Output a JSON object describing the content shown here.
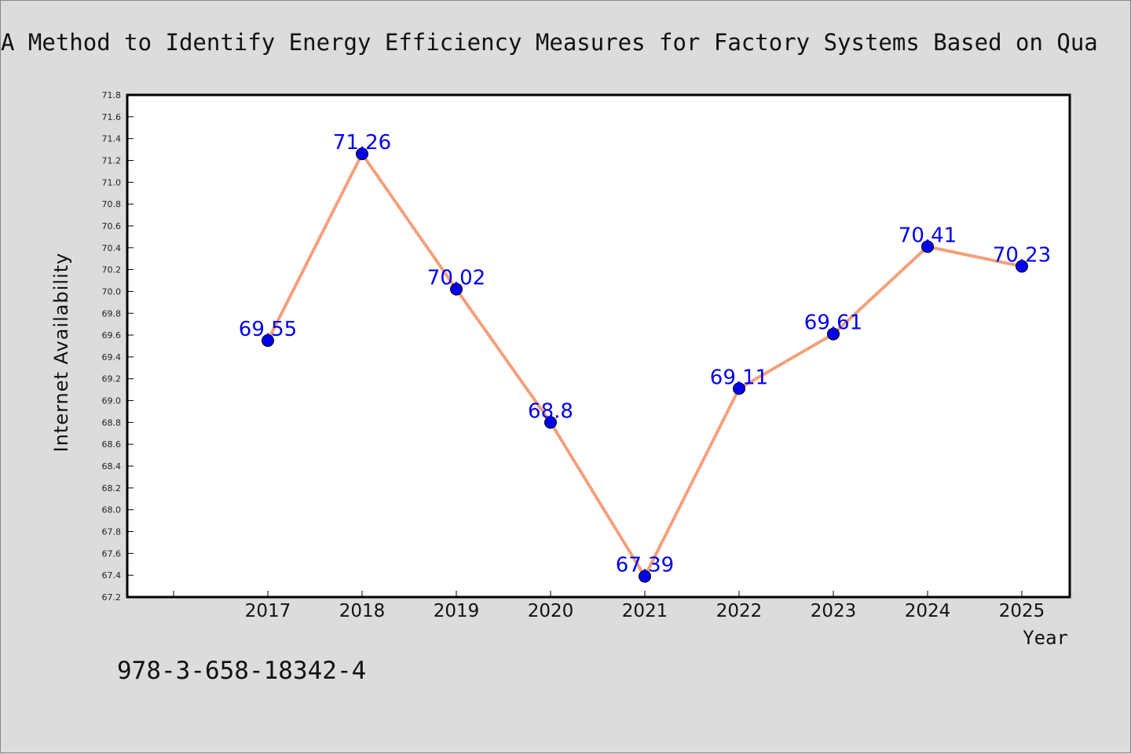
{
  "footer_text": "978-3-658-18342-4",
  "colors": {
    "line": "#f4a07c",
    "marker": "#0000ee",
    "labels": "#0000ee",
    "background": "#dcdcdc",
    "plot": "#ffffff"
  },
  "chart_data": {
    "type": "line",
    "title": "A Method to Identify Energy Efficiency Measures for Factory Systems Based on Qua",
    "xlabel": "Year",
    "ylabel": "Internet Availability",
    "categories": [
      "2017",
      "2018",
      "2019",
      "2020",
      "2021",
      "2022",
      "2023",
      "2024",
      "2025"
    ],
    "values": [
      69.55,
      71.26,
      70.02,
      68.8,
      67.39,
      69.11,
      69.61,
      70.41,
      70.23
    ],
    "data_labels": [
      "69.55",
      "71.26",
      "70.02",
      "68.8",
      "67.39",
      "69.11",
      "69.61",
      "70.41",
      "70.23"
    ],
    "ylim": [
      67.2,
      71.8
    ],
    "yticks": [
      "67.2",
      "67.4",
      "67.6",
      "67.8",
      "68.0",
      "68.2",
      "68.4",
      "68.6",
      "68.8",
      "69.0",
      "69.2",
      "69.4",
      "69.6",
      "69.8",
      "70.0",
      "70.2",
      "70.4",
      "70.6",
      "70.8",
      "71.0",
      "71.2",
      "71.4",
      "71.6",
      "71.8"
    ],
    "grid": false,
    "legend": "none"
  }
}
